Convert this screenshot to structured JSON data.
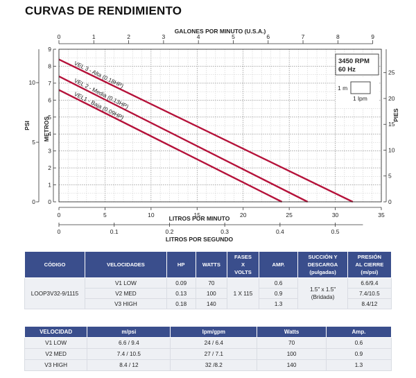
{
  "title": "CURVAS DE RENDIMIENTO",
  "chart_data": {
    "type": "line",
    "top_axis": {
      "label": "GALONES POR MINUTO (U.S.A.)",
      "ticks": [
        0,
        1,
        2,
        3,
        4,
        5,
        6,
        7,
        8,
        9
      ],
      "range": [
        0,
        9
      ]
    },
    "bottom_axis": {
      "label": "LITROS POR MINUTO",
      "ticks": [
        0,
        5,
        10,
        15,
        20,
        25,
        30,
        35
      ],
      "range": [
        0,
        35
      ]
    },
    "bottom2_axis": {
      "label": "LITROS POR SEGUNDO",
      "ticks": [
        "0",
        "0.1",
        "0.2",
        "0.3",
        "0.4",
        "0.5"
      ],
      "values": [
        0,
        0.1,
        0.2,
        0.3,
        0.4,
        0.5
      ]
    },
    "left_axis_metros": {
      "label": "METROS",
      "ticks": [
        0,
        1,
        2,
        3,
        4,
        5,
        6,
        7,
        8,
        9
      ],
      "range": [
        0,
        9
      ]
    },
    "left_axis_psi": {
      "label": "PSI",
      "ticks": [
        0,
        5,
        10
      ],
      "values": [
        0,
        5,
        10
      ]
    },
    "right_axis": {
      "label": "PIES",
      "ticks": [
        0,
        5,
        10,
        15,
        20,
        25
      ],
      "range": [
        0,
        29.53
      ]
    },
    "legend_box": {
      "line1": "3450 RPM",
      "line2": "60 Hz"
    },
    "scale_box": {
      "vertical": "1 m",
      "horizontal": "1 lpm"
    },
    "grid": true,
    "series": [
      {
        "name": "VEL 3 - Alta (0.18HP)",
        "color": "#b5123a",
        "x": [
          0,
          31.9
        ],
        "y": [
          8.4,
          0
        ]
      },
      {
        "name": "VEL 2 - Media (0.13HP)",
        "color": "#b5123a",
        "x": [
          0,
          27.0
        ],
        "y": [
          7.4,
          0
        ]
      },
      {
        "name": "VEL1 - Baja (0.09HP)",
        "color": "#b5123a",
        "x": [
          0,
          24.2
        ],
        "y": [
          6.6,
          0
        ]
      }
    ]
  },
  "table1": {
    "headers": [
      "CÓDIGO",
      "VELOCIDADES",
      "HP",
      "WATTS",
      "FASES\nX\nVOLTS",
      "AMP.",
      "SUCCIÓN Y\nDESCARGA\n(pulgadas)",
      "PRESIÓN\nAL CIERRE\n(m/psi)"
    ],
    "code": "LOOP3V32-9/1115",
    "phase": "1 X 115",
    "connection_line1": "1.5\" x 1.5\"",
    "connection_line2": "(Bridada)",
    "rows": [
      {
        "vel": "V1 LOW",
        "hp": "0.09",
        "watts": "70",
        "amp": "0.6",
        "pres": "6.6/9.4"
      },
      {
        "vel": "V2 MED",
        "hp": "0.13",
        "watts": "100",
        "amp": "0.9",
        "pres": "7.4/10.5"
      },
      {
        "vel": "V3 HIGH",
        "hp": "0.18",
        "watts": "140",
        "amp": "1.3",
        "pres": "8.4/12"
      }
    ]
  },
  "table2": {
    "headers": [
      "VELOCIDAD",
      "m/psi",
      "lpm/gpm",
      "Watts",
      "Amp."
    ],
    "rows": [
      {
        "vel": "V1 LOW",
        "mpsi": "6.6 / 9.4",
        "lpm": "24 / 6.4",
        "watts": "70",
        "amp": "0.6"
      },
      {
        "vel": "V2 MED",
        "mpsi": "7.4 / 10.5",
        "lpm": "27 / 7.1",
        "watts": "100",
        "amp": "0.9"
      },
      {
        "vel": "V3 HIGH",
        "mpsi": "8.4 / 12",
        "lpm": "32 /8.2",
        "watts": "140",
        "amp": "1.3"
      }
    ]
  }
}
